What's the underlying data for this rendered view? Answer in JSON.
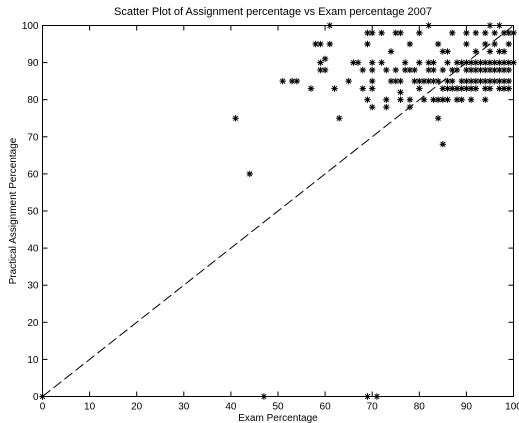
{
  "chart_data": {
    "type": "scatter",
    "title": "Scatter Plot of Assignment percentage vs Exam percentage 2007",
    "xlabel": "Exam Percentage",
    "ylabel": "Practical Assignment Percentage",
    "xlim": [
      0,
      100
    ],
    "ylim": [
      0,
      100
    ],
    "xticks": [
      0,
      10,
      20,
      30,
      40,
      50,
      60,
      70,
      80,
      90,
      100
    ],
    "yticks": [
      0,
      10,
      20,
      30,
      40,
      50,
      60,
      70,
      80,
      90,
      100
    ],
    "grid": false,
    "legend": false,
    "marker": "star",
    "reference_line": {
      "from": [
        0,
        0
      ],
      "to": [
        100,
        100
      ],
      "style": "dashed"
    },
    "series": [
      {
        "points": [
          [
            0,
            0
          ],
          [
            41,
            75
          ],
          [
            44,
            60
          ],
          [
            47,
            0
          ],
          [
            51,
            85
          ],
          [
            53,
            85
          ],
          [
            54,
            85
          ],
          [
            57,
            83
          ],
          [
            58,
            95
          ],
          [
            59,
            95
          ],
          [
            59,
            90
          ],
          [
            59,
            88
          ],
          [
            60,
            91
          ],
          [
            60,
            88
          ],
          [
            61,
            100
          ],
          [
            61,
            95
          ],
          [
            62,
            83
          ],
          [
            63,
            75
          ],
          [
            65,
            85
          ],
          [
            66,
            90
          ],
          [
            67,
            90
          ],
          [
            68,
            88
          ],
          [
            68,
            83
          ],
          [
            69,
            98
          ],
          [
            69,
            95
          ],
          [
            69,
            80
          ],
          [
            69,
            0
          ],
          [
            70,
            98
          ],
          [
            70,
            90
          ],
          [
            70,
            88
          ],
          [
            70,
            85
          ],
          [
            70,
            83
          ],
          [
            70,
            78
          ],
          [
            71,
            0
          ],
          [
            72,
            98
          ],
          [
            72,
            90
          ],
          [
            73,
            88
          ],
          [
            73,
            80
          ],
          [
            73,
            78
          ],
          [
            74,
            93
          ],
          [
            74,
            85
          ],
          [
            75,
            98
          ],
          [
            75,
            88
          ],
          [
            75,
            85
          ],
          [
            76,
            98
          ],
          [
            76,
            85
          ],
          [
            76,
            82
          ],
          [
            76,
            80
          ],
          [
            77,
            88
          ],
          [
            77,
            90
          ],
          [
            78,
            95
          ],
          [
            78,
            88
          ],
          [
            78,
            80
          ],
          [
            78,
            78
          ],
          [
            79,
            88
          ],
          [
            79,
            85
          ],
          [
            80,
            98
          ],
          [
            80,
            90
          ],
          [
            80,
            85
          ],
          [
            80,
            83
          ],
          [
            81,
            85
          ],
          [
            81,
            80
          ],
          [
            82,
            100
          ],
          [
            82,
            90
          ],
          [
            82,
            88
          ],
          [
            82,
            85
          ],
          [
            83,
            90
          ],
          [
            83,
            88
          ],
          [
            83,
            85
          ],
          [
            83,
            80
          ],
          [
            84,
            95
          ],
          [
            84,
            85
          ],
          [
            84,
            80
          ],
          [
            84,
            75
          ],
          [
            85,
            93
          ],
          [
            85,
            88
          ],
          [
            85,
            83
          ],
          [
            85,
            80
          ],
          [
            85,
            68
          ],
          [
            86,
            93
          ],
          [
            86,
            90
          ],
          [
            86,
            85
          ],
          [
            86,
            83
          ],
          [
            86,
            80
          ],
          [
            87,
            98
          ],
          [
            87,
            88
          ],
          [
            87,
            85
          ],
          [
            87,
            83
          ],
          [
            88,
            90
          ],
          [
            88,
            88
          ],
          [
            88,
            83
          ],
          [
            88,
            80
          ],
          [
            89,
            90
          ],
          [
            89,
            85
          ],
          [
            89,
            80
          ],
          [
            89,
            83
          ],
          [
            90,
            98
          ],
          [
            90,
            95
          ],
          [
            90,
            90
          ],
          [
            90,
            88
          ],
          [
            90,
            85
          ],
          [
            90,
            83
          ],
          [
            91,
            90
          ],
          [
            91,
            88
          ],
          [
            91,
            85
          ],
          [
            91,
            83
          ],
          [
            91,
            80
          ],
          [
            92,
            98
          ],
          [
            92,
            93
          ],
          [
            92,
            90
          ],
          [
            92,
            88
          ],
          [
            92,
            85
          ],
          [
            92,
            83
          ],
          [
            93,
            90
          ],
          [
            93,
            88
          ],
          [
            93,
            85
          ],
          [
            94,
            98
          ],
          [
            94,
            95
          ],
          [
            94,
            90
          ],
          [
            94,
            88
          ],
          [
            94,
            85
          ],
          [
            94,
            83
          ],
          [
            94,
            80
          ],
          [
            95,
            100
          ],
          [
            95,
            93
          ],
          [
            95,
            90
          ],
          [
            95,
            88
          ],
          [
            95,
            85
          ],
          [
            95,
            83
          ],
          [
            96,
            98
          ],
          [
            96,
            95
          ],
          [
            96,
            90
          ],
          [
            96,
            88
          ],
          [
            96,
            85
          ],
          [
            97,
            100
          ],
          [
            97,
            93
          ],
          [
            97,
            90
          ],
          [
            97,
            88
          ],
          [
            97,
            85
          ],
          [
            97,
            83
          ],
          [
            98,
            98
          ],
          [
            98,
            93
          ],
          [
            98,
            90
          ],
          [
            98,
            88
          ],
          [
            98,
            85
          ],
          [
            98,
            83
          ],
          [
            99,
            98
          ],
          [
            99,
            95
          ],
          [
            99,
            90
          ],
          [
            99,
            88
          ],
          [
            99,
            85
          ],
          [
            99,
            83
          ],
          [
            100,
            98
          ],
          [
            100,
            90
          ]
        ]
      }
    ]
  }
}
